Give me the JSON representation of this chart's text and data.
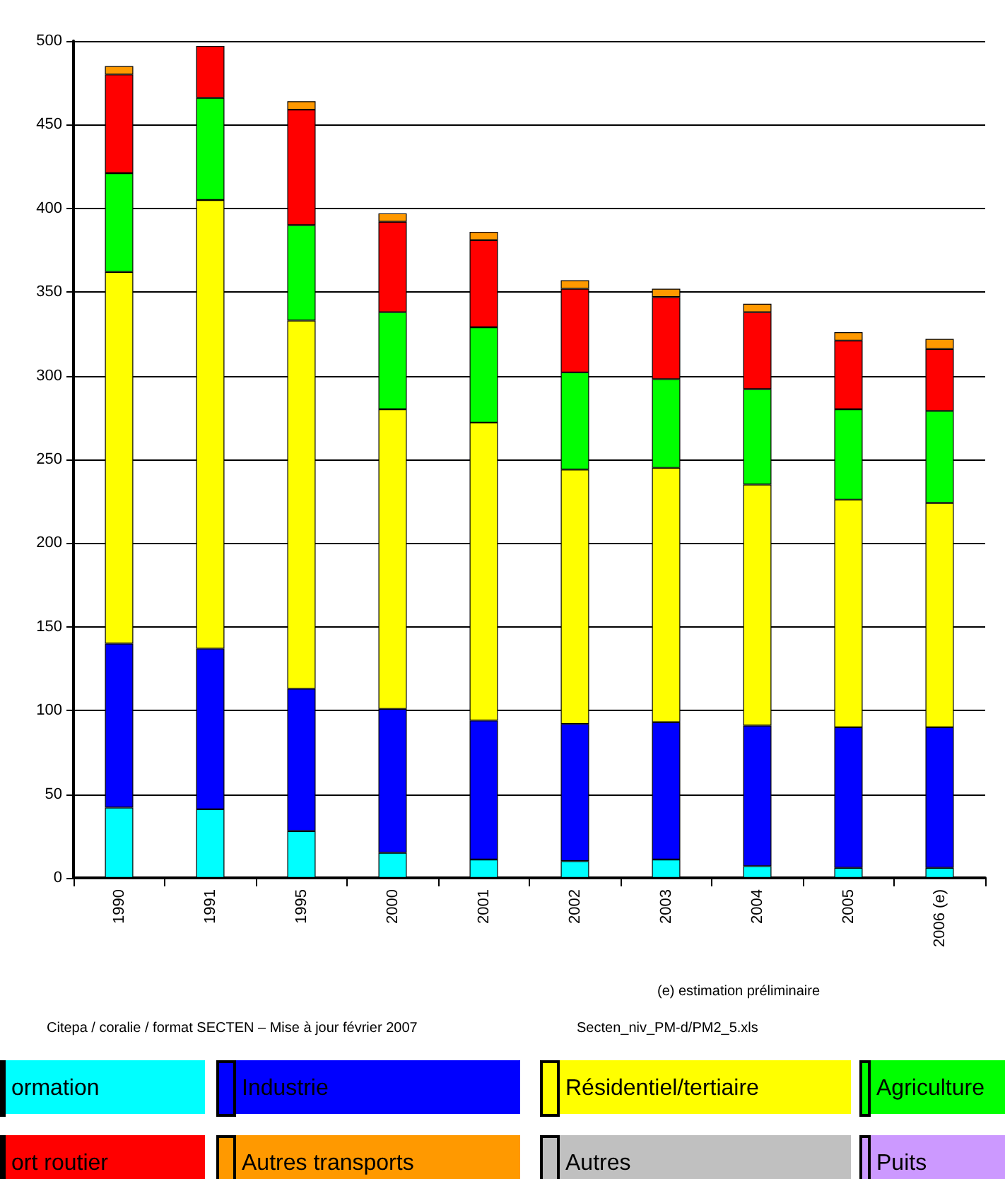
{
  "chart_data": {
    "type": "bar",
    "stacked": true,
    "categories": [
      "1990",
      "1991",
      "1995",
      "2000",
      "2001",
      "2002",
      "2003",
      "2004",
      "2005",
      "2006 (e)"
    ],
    "series": [
      {
        "name": "ormation",
        "color": "#00ffff",
        "values": [
          42,
          41,
          28,
          15,
          11,
          10,
          11,
          7,
          6,
          6
        ]
      },
      {
        "name": "Industrie",
        "color": "#0000ff",
        "values": [
          98,
          96,
          85,
          86,
          83,
          82,
          82,
          84,
          84,
          84
        ]
      },
      {
        "name": "Résidentiel/tertiaire",
        "color": "#ffff00",
        "values": [
          222,
          268,
          220,
          179,
          178,
          152,
          152,
          144,
          136,
          134
        ]
      },
      {
        "name": "Agriculture",
        "color": "#00ff00",
        "values": [
          59,
          61,
          57,
          58,
          57,
          58,
          53,
          57,
          54,
          55
        ]
      },
      {
        "name": "ort routier",
        "color": "#ff0000",
        "values": [
          59,
          31,
          69,
          54,
          52,
          50,
          49,
          46,
          41,
          37
        ]
      },
      {
        "name": "Autres transports",
        "color": "#ff9900",
        "values": [
          5,
          null,
          5,
          5,
          5,
          5,
          5,
          5,
          5,
          6
        ]
      },
      {
        "name": "Autres",
        "color": "#c0c0c0",
        "values": [
          null,
          null,
          null,
          null,
          null,
          null,
          null,
          null,
          null,
          null
        ]
      },
      {
        "name": "Puits",
        "color": "#cc99ff",
        "values": [
          null,
          null,
          null,
          null,
          null,
          null,
          null,
          null,
          null,
          null
        ]
      }
    ],
    "ylim": [
      0,
      500
    ],
    "yticks": [
      0,
      50,
      100,
      150,
      200,
      250,
      300,
      350,
      400,
      450,
      500
    ],
    "grid": "y",
    "legend": "bottom",
    "annotations": [
      "(e) estimation préliminaire",
      "Citepa / coralie  / format SECTEN – Mise à jour février 2007",
      "Secten_niv_PM-d/PM2_5.xls"
    ]
  }
}
